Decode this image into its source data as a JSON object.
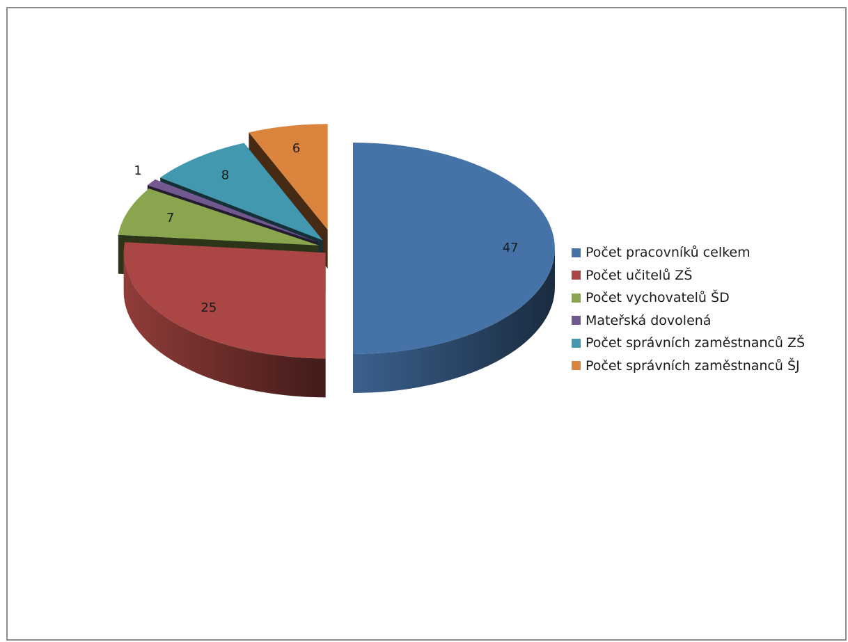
{
  "chart_data": {
    "type": "pie",
    "categories": [
      "Počet pracovníků celkem",
      "Počet učitelů ZŠ",
      "Počet vychovatelů ŠD",
      "Mateřská dovolená",
      "Počet správních zaměstnanců ZŠ",
      "Počet správních zaměstnanců ŠJ"
    ],
    "values": [
      47,
      25,
      7,
      1,
      8,
      6
    ],
    "data_labels": [
      "47",
      "25",
      "7",
      "1",
      "8",
      "6"
    ],
    "colors": [
      "#4572a7",
      "#aa4643",
      "#89a54e",
      "#71588f",
      "#4198af",
      "#db843d"
    ],
    "exploded": true,
    "three_d": true,
    "legend_position": "right"
  }
}
